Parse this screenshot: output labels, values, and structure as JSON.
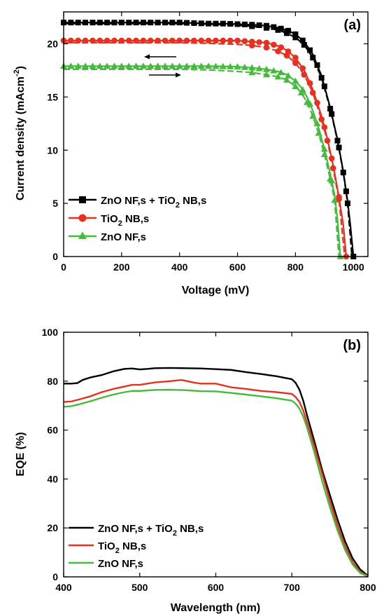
{
  "chart_data": [
    {
      "panel_label": "(a)",
      "type": "line",
      "xlabel": "Voltage (mV)",
      "ylabel_main": "Current density (mAcm",
      "ylabel_sup": "-2",
      "ylabel_end": ")",
      "xlim": [
        0,
        1050
      ],
      "ylim": [
        0,
        23
      ],
      "xticks": [
        0,
        200,
        400,
        600,
        800,
        1000
      ],
      "yticks": [
        0,
        5,
        10,
        15,
        20
      ],
      "legend_position": "bottom-left",
      "sweep_arrows": [
        "reverse",
        "forward"
      ],
      "series": [
        {
          "name": "ZnO NF,s + TiO2 NB,s",
          "name_main": "ZnO NF,s + TiO",
          "name_sub": "2",
          "name_end": " NB,s",
          "color": "#000000",
          "marker": "square",
          "reverse": {
            "x": [
              0,
              100,
              200,
              300,
              400,
              500,
              550,
              600,
              650,
              700,
              740,
              770,
              800,
              830,
              860,
              890,
              920,
              945,
              965,
              980,
              990,
              1000
            ],
            "y": [
              22.0,
              22.0,
              22.0,
              22.0,
              22.0,
              21.9,
              21.9,
              21.85,
              21.8,
              21.7,
              21.5,
              21.3,
              20.9,
              20.2,
              19.0,
              17.0,
              14.0,
              11.0,
              8.0,
              5.2,
              2.8,
              0.0
            ]
          },
          "forward": {
            "x": [
              0,
              100,
              200,
              300,
              400,
              500,
              600,
              650,
              700,
              740,
              770,
              800,
              830,
              860,
              890,
              920,
              945,
              965,
              980,
              995
            ],
            "y": [
              21.9,
              21.9,
              21.9,
              21.9,
              21.9,
              21.85,
              21.75,
              21.65,
              21.5,
              21.3,
              21.0,
              20.6,
              19.9,
              18.7,
              16.8,
              13.9,
              10.9,
              7.9,
              5.0,
              0.0
            ]
          }
        },
        {
          "name": "TiO2 NB,s",
          "name_main": "TiO",
          "name_sub": "2",
          "name_end": " NB,s",
          "color": "#e8301f",
          "marker": "circle",
          "reverse": {
            "x": [
              0,
              100,
              200,
              300,
              400,
              500,
              600,
              650,
              700,
              740,
              770,
              800,
              830,
              860,
              890,
              910,
              930,
              950,
              965,
              975
            ],
            "y": [
              20.3,
              20.3,
              20.3,
              20.3,
              20.3,
              20.3,
              20.3,
              20.2,
              20.1,
              19.8,
              19.4,
              18.7,
              17.5,
              15.7,
              13.2,
              11.1,
              8.6,
              5.6,
              3.0,
              0.0
            ]
          },
          "forward": {
            "x": [
              0,
              100,
              200,
              300,
              400,
              500,
              600,
              650,
              700,
              740,
              770,
              800,
              830,
              860,
              890,
              910,
              930,
              950,
              970
            ],
            "y": [
              20.1,
              20.1,
              20.1,
              20.1,
              20.1,
              20.05,
              19.95,
              19.85,
              19.65,
              19.3,
              18.9,
              18.2,
              17.1,
              15.4,
              12.9,
              10.9,
              8.3,
              5.4,
              0.0
            ]
          }
        },
        {
          "name": "ZnO NF,s",
          "name_main": "ZnO NF,s",
          "name_sub": "",
          "name_end": "",
          "color": "#44bb3b",
          "marker": "triangle",
          "reverse": {
            "x": [
              0,
              100,
              200,
              300,
              400,
              500,
              600,
              650,
              700,
              740,
              770,
              800,
              820,
              840,
              860,
              880,
              900,
              920,
              935,
              945,
              955
            ],
            "y": [
              17.9,
              17.9,
              17.9,
              17.9,
              17.9,
              17.9,
              17.85,
              17.75,
              17.6,
              17.4,
              17.1,
              16.5,
              15.9,
              15.0,
              13.7,
              12.1,
              10.1,
              7.8,
              5.8,
              3.5,
              0.0
            ]
          },
          "forward": {
            "x": [
              0,
              100,
              200,
              300,
              400,
              500,
              600,
              650,
              700,
              740,
              770,
              800,
              820,
              840,
              860,
              880,
              900,
              920,
              935,
              950
            ],
            "y": [
              17.6,
              17.6,
              17.6,
              17.6,
              17.6,
              17.55,
              17.4,
              17.3,
              17.1,
              16.9,
              16.6,
              16.0,
              15.4,
              14.5,
              13.2,
              11.6,
              9.6,
              7.3,
              5.3,
              0.0
            ]
          }
        }
      ]
    },
    {
      "panel_label": "(b)",
      "type": "line",
      "xlabel": "Wavelength (nm)",
      "ylabel_main": "EQE (%)",
      "ylabel_sup": "",
      "ylabel_end": "",
      "xlim": [
        400,
        800
      ],
      "ylim": [
        0,
        100
      ],
      "xticks": [
        400,
        500,
        600,
        700,
        800
      ],
      "yticks": [
        0,
        20,
        40,
        60,
        80,
        100
      ],
      "legend_position": "bottom-left",
      "series": [
        {
          "name": "ZnO NF,s + TiO2 NB,s",
          "name_main": "ZnO NF,s + TiO",
          "name_sub": "2",
          "name_end": " NB,s",
          "color": "#000000",
          "x": [
            400,
            410,
            418,
            425,
            435,
            450,
            465,
            480,
            490,
            500,
            510,
            520,
            540,
            560,
            580,
            600,
            620,
            640,
            660,
            680,
            700,
            705,
            710,
            715,
            720,
            730,
            740,
            750,
            760,
            770,
            780,
            790,
            800
          ],
          "y": [
            79.0,
            79.0,
            79.2,
            80.5,
            81.5,
            82.5,
            84.0,
            85.0,
            85.2,
            84.8,
            85.0,
            85.3,
            85.4,
            85.3,
            85.2,
            84.9,
            84.6,
            83.7,
            82.9,
            82.0,
            80.8,
            79.3,
            76.5,
            72.0,
            66.0,
            55.0,
            43.5,
            33.5,
            23.5,
            14.5,
            7.5,
            3.0,
            0.5
          ]
        },
        {
          "name": "TiO2 NB,s",
          "name_main": "TiO",
          "name_sub": "2",
          "name_end": " NB,s",
          "color": "#e8301f",
          "x": [
            400,
            410,
            420,
            435,
            450,
            465,
            480,
            490,
            500,
            510,
            520,
            540,
            555,
            570,
            580,
            600,
            620,
            640,
            660,
            680,
            700,
            705,
            710,
            715,
            720,
            730,
            740,
            750,
            760,
            770,
            780,
            790,
            800
          ],
          "y": [
            71.5,
            71.7,
            72.5,
            73.8,
            75.5,
            76.8,
            77.8,
            78.5,
            78.5,
            79.0,
            79.5,
            80.0,
            80.5,
            79.5,
            79.0,
            79.0,
            77.5,
            76.8,
            76.0,
            75.5,
            74.8,
            73.5,
            71.5,
            68.0,
            63.0,
            53.0,
            42.0,
            31.0,
            21.0,
            12.5,
            6.0,
            2.0,
            0.3
          ]
        },
        {
          "name": "ZnO NF,s",
          "name_main": "ZnO NF,s",
          "name_sub": "",
          "name_end": "",
          "color": "#44bb3b",
          "x": [
            400,
            410,
            420,
            435,
            450,
            465,
            480,
            490,
            500,
            510,
            520,
            540,
            560,
            580,
            600,
            620,
            640,
            660,
            680,
            700,
            705,
            710,
            715,
            720,
            730,
            740,
            750,
            760,
            770,
            780,
            790,
            800
          ],
          "y": [
            69.5,
            69.8,
            70.5,
            71.8,
            73.2,
            74.5,
            75.5,
            76.0,
            76.0,
            76.2,
            76.4,
            76.5,
            76.3,
            75.9,
            75.8,
            75.2,
            74.5,
            73.8,
            73.0,
            72.0,
            70.8,
            68.8,
            65.5,
            61.0,
            50.5,
            39.0,
            28.5,
            19.0,
            11.0,
            5.0,
            1.5,
            0.2
          ]
        }
      ]
    }
  ]
}
